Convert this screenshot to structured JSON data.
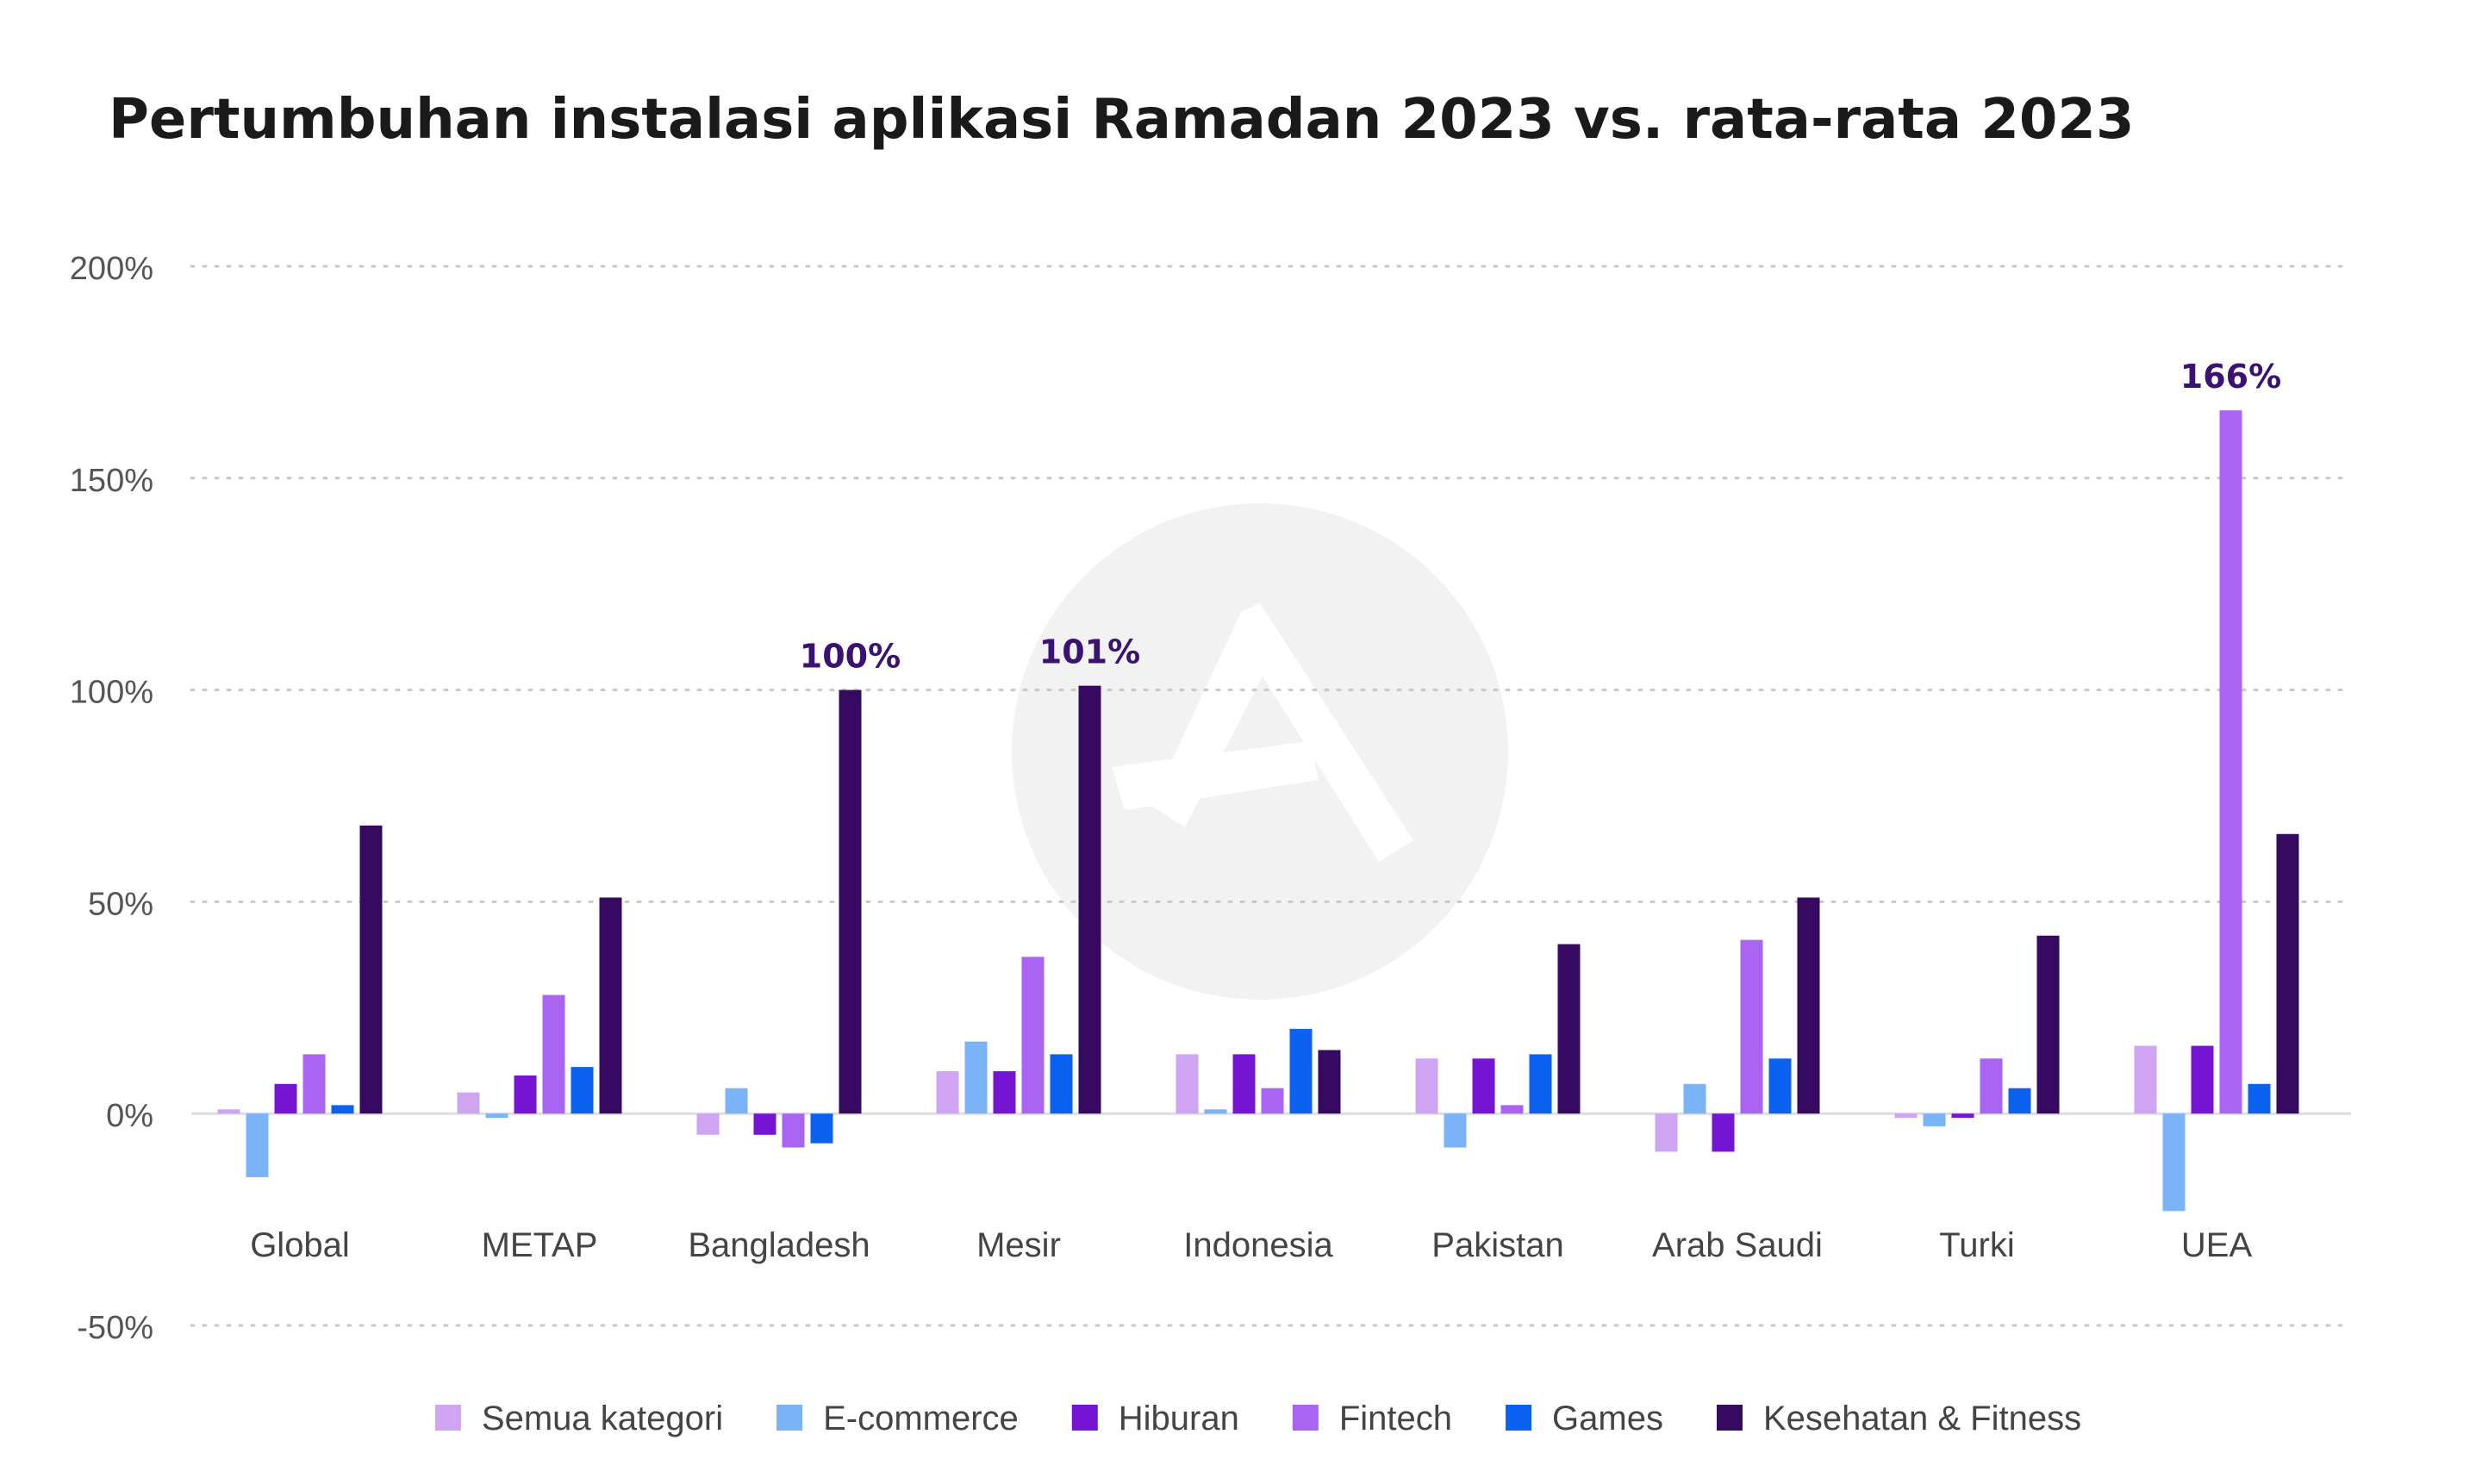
{
  "chart_data": {
    "type": "bar",
    "title": "Pertumbuhan instalasi aplikasi Ramadan 2023 vs. rata-rata 2023",
    "xlabel": "",
    "ylabel": "",
    "ylim": [
      -50,
      200
    ],
    "y_ticks": [
      200,
      150,
      100,
      50,
      0,
      -50
    ],
    "y_tick_labels": [
      "200%",
      "150%",
      "100%",
      "50%",
      "0%",
      "-50%"
    ],
    "grid": true,
    "legend_position": "bottom",
    "categories": [
      "Global",
      "METAP",
      "Bangladesh",
      "Mesir",
      "Indonesia",
      "Pakistan",
      "Arab Saudi",
      "Turki",
      "UEA"
    ],
    "series": [
      {
        "name": "Semua kategori",
        "color": "#CFA4F2",
        "values": [
          1,
          5,
          -5,
          10,
          14,
          13,
          -9,
          -1,
          16
        ]
      },
      {
        "name": "E-commerce",
        "color": "#7AB4F7",
        "values": [
          -15,
          -1,
          6,
          17,
          1,
          -8,
          7,
          -3,
          -23
        ]
      },
      {
        "name": "Hiburan",
        "color": "#7614D3",
        "values": [
          7,
          9,
          -5,
          10,
          14,
          13,
          -9,
          -1,
          16
        ]
      },
      {
        "name": "Fintech",
        "color": "#A965F2",
        "values": [
          14,
          28,
          -8,
          37,
          6,
          2,
          41,
          13,
          166
        ]
      },
      {
        "name": "Games",
        "color": "#0B62F0",
        "values": [
          2,
          11,
          -7,
          14,
          20,
          14,
          13,
          6,
          7
        ]
      },
      {
        "name": "Kesehatan & Fitness",
        "color": "#370A62",
        "values": [
          68,
          51,
          100,
          101,
          15,
          40,
          51,
          42,
          66
        ]
      }
    ],
    "annotations": [
      {
        "text": "100%",
        "category": "Bangladesh",
        "series": "Kesehatan & Fitness",
        "value": 100
      },
      {
        "text": "101%",
        "category": "Mesir",
        "series": "Kesehatan & Fitness",
        "value": 101
      },
      {
        "text": "166%",
        "category": "UEA",
        "series": "Fintech",
        "value": 166
      }
    ],
    "annotation_color": "#3A1272",
    "gridline_color": "#C8C8C8",
    "zero_line_color": "#DDDDDD",
    "watermark": "logo"
  }
}
